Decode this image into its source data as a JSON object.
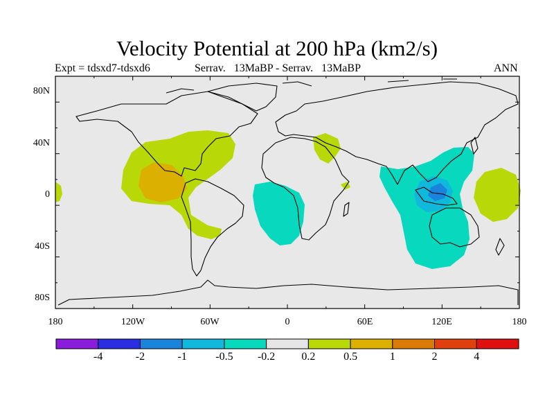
{
  "title": "Velocity Potential at 200 hPa (km2/s)",
  "subtitle_left": "Expt = tdsxd7-tdsxd6",
  "subtitle_center": "Serrav.   13MaBP - Serrav.   13MaBP",
  "subtitle_right": "ANN",
  "axes": {
    "lon_labels": [
      "180",
      "120W",
      "60W",
      "0",
      "60E",
      "120E",
      "180"
    ],
    "lat_labels": [
      "80N",
      "40N",
      "0",
      "40S",
      "80S"
    ]
  },
  "colorbar": {
    "labels": [
      "-4",
      "-2",
      "-1",
      "-0.5",
      "-0.2",
      "0.2",
      "0.5",
      "1",
      "2",
      "4"
    ],
    "colors": [
      "#8a1cdc",
      "#2a2ee0",
      "#1a84dc",
      "#10b8dc",
      "#08d8be",
      "#e6e6e6",
      "#b8d808",
      "#dcb000",
      "#dc7a08",
      "#e04010",
      "#e01010"
    ]
  },
  "colors": {
    "ocean": "#e8e8e8",
    "teal": "#08d8be",
    "cyan": "#10b8dc",
    "blue": "#1a84dc",
    "yellowgreen": "#b8d808",
    "orange": "#dcb000"
  }
}
